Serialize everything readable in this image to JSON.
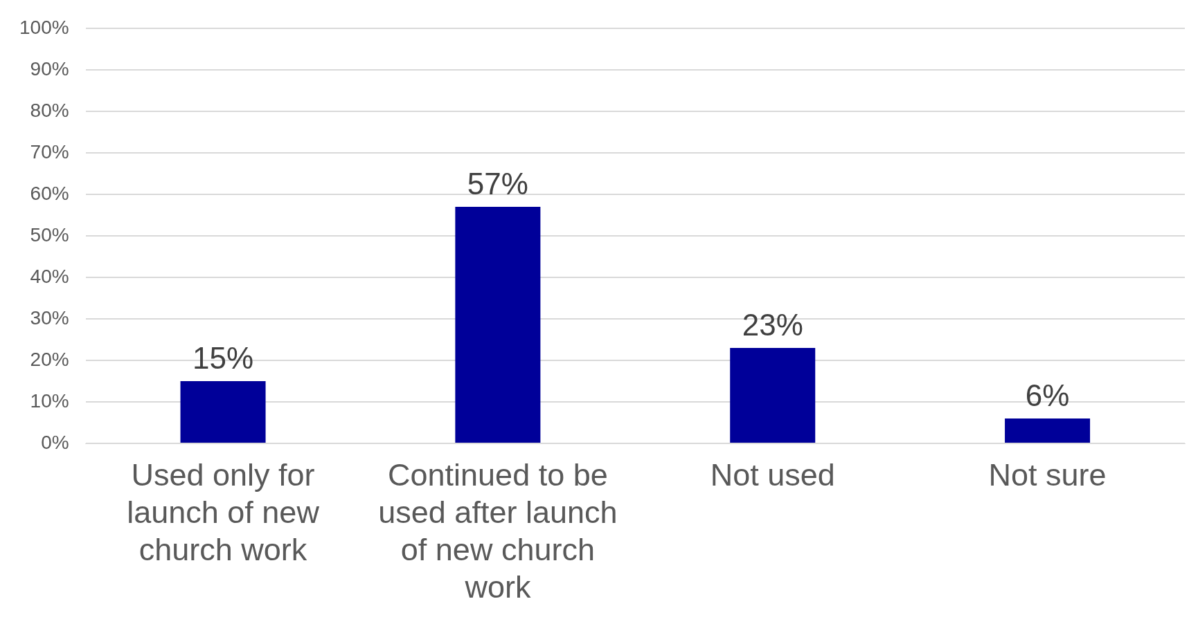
{
  "chart_data": {
    "type": "bar",
    "categories": [
      "Used only for launch of new church work",
      "Continued to be used after launch of new church work",
      "Not used",
      "Not sure"
    ],
    "values": [
      15,
      57,
      23,
      6
    ],
    "value_labels": [
      "15%",
      "57%",
      "23%",
      "6%"
    ],
    "color": "#000099",
    "ylim": [
      0,
      100
    ],
    "yticks": [
      {
        "value": 0,
        "label": "0%"
      },
      {
        "value": 10,
        "label": "10%"
      },
      {
        "value": 20,
        "label": "20%"
      },
      {
        "value": 30,
        "label": "30%"
      },
      {
        "value": 40,
        "label": "40%"
      },
      {
        "value": 50,
        "label": "50%"
      },
      {
        "value": 60,
        "label": "60%"
      },
      {
        "value": 70,
        "label": "70%"
      },
      {
        "value": 80,
        "label": "80%"
      },
      {
        "value": 90,
        "label": "90%"
      },
      {
        "value": 100,
        "label": "100%"
      }
    ],
    "grid": "y",
    "legend": false
  }
}
